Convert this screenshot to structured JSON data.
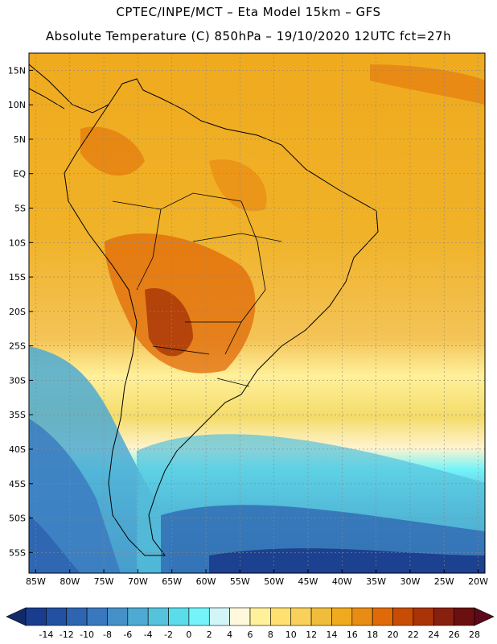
{
  "header": {
    "line1": "CPTEC/INPE/MCT –  Eta Model 15km – GFS",
    "line2": "Absolute Temperature (C) 850hPa – 19/10/2020 12UTC fct=27h"
  },
  "map": {
    "lat_labels": [
      "15N",
      "10N",
      "5N",
      "EQ",
      "5S",
      "10S",
      "15S",
      "20S",
      "25S",
      "30S",
      "35S",
      "40S",
      "45S",
      "50S",
      "55S"
    ],
    "lon_labels": [
      "85W",
      "80W",
      "75W",
      "70W",
      "65W",
      "60W",
      "55W",
      "50W",
      "45W",
      "40W",
      "35W",
      "30W",
      "25W",
      "20W"
    ],
    "lat_range": [
      17.5,
      -58
    ],
    "lon_range": [
      -86,
      -19
    ]
  },
  "colorbar": {
    "ticks": [
      "-14",
      "-12",
      "-10",
      "-8",
      "-6",
      "-4",
      "-2",
      "0",
      "2",
      "4",
      "6",
      "8",
      "10",
      "12",
      "14",
      "16",
      "18",
      "20",
      "22",
      "24",
      "26",
      "28"
    ],
    "colors": [
      "#1a3c8c",
      "#2350a0",
      "#2e64b0",
      "#3a78be",
      "#4690c8",
      "#4eaad2",
      "#56c2dc",
      "#5adcea",
      "#74f4fa",
      "#d2f6f8",
      "#fff8dc",
      "#fff09a",
      "#ffe070",
      "#f8d05a",
      "#f0bc3c",
      "#f0aa1e",
      "#e88c14",
      "#e06a08",
      "#c84c04",
      "#a83408",
      "#882010",
      "#6a1010"
    ],
    "left_arrow_color": "#122a6a",
    "right_arrow_color": "#5a0a1a"
  }
}
